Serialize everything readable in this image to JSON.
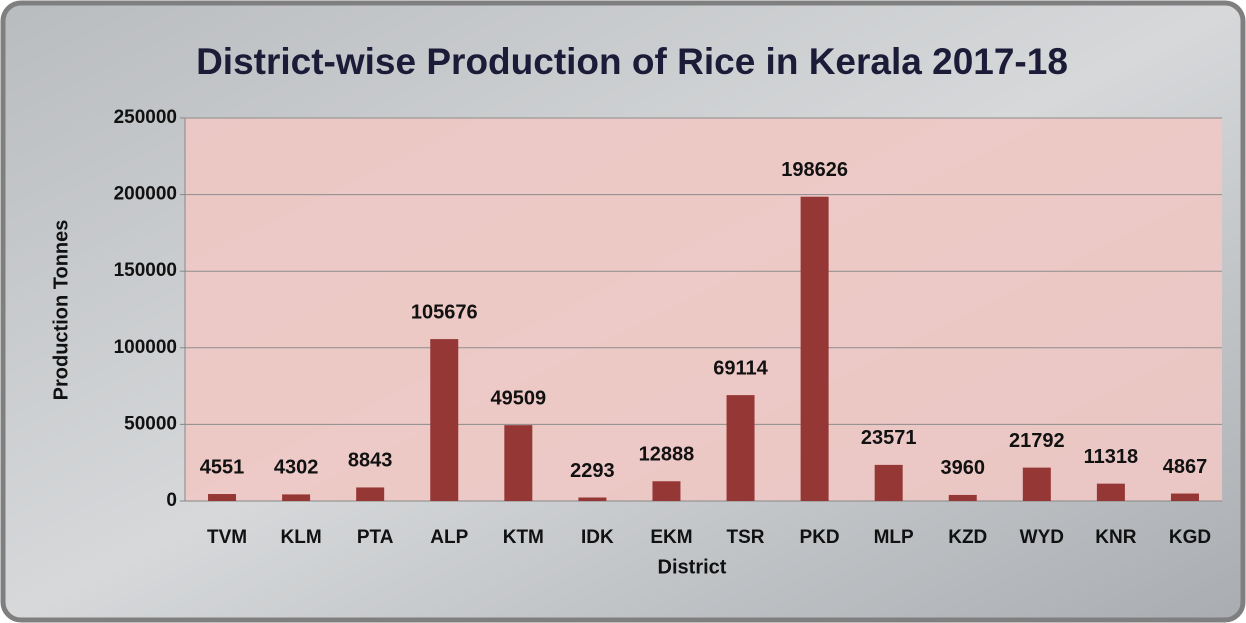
{
  "chart_data": {
    "type": "bar",
    "title": "District-wise Production of Rice in Kerala 2017-18",
    "x_label": "District",
    "y_label": "Production Tonnes",
    "categories": [
      "TVM",
      "KLM",
      "PTA",
      "ALP",
      "KTM",
      "IDK",
      "EKM",
      "TSR",
      "PKD",
      "MLP",
      "KZD",
      "WYD",
      "KNR",
      "KGD"
    ],
    "values": [
      4551,
      4302,
      8843,
      105676,
      49509,
      2293,
      12888,
      69114,
      198626,
      23571,
      3960,
      21792,
      11318,
      4867
    ],
    "color": "#953735",
    "ylim": [
      0,
      250000
    ],
    "yticks": [
      0,
      50000,
      100000,
      150000,
      200000,
      250000
    ],
    "grid": true
  }
}
